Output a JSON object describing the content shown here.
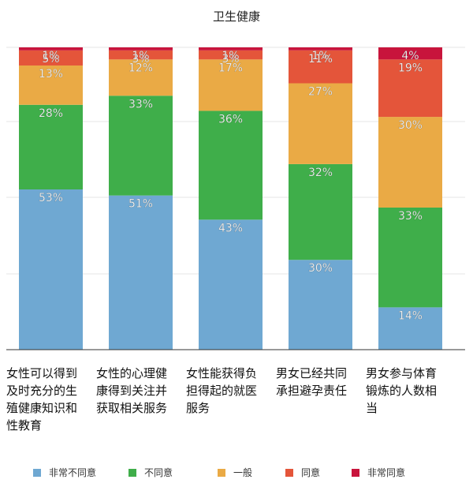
{
  "chart_data": {
    "type": "bar",
    "stacked": true,
    "title": "卫生健康",
    "categories": [
      "女性可以得到及时充分的生殖健康知识和性教育",
      "女性的心理健康得到关注并获取相关服务",
      "女性能获得负担得起的就医服务",
      "男女已经共同承担避孕责任",
      "男女参与体育锻炼的人数相当"
    ],
    "series": [
      {
        "name": "非常不同意",
        "color": "#6fa8d2",
        "values": [
          53,
          51,
          43,
          30,
          14
        ],
        "labels": [
          "53%",
          "51%",
          "43%",
          "30%",
          "14%"
        ]
      },
      {
        "name": "不同意",
        "color": "#3fae4a",
        "values": [
          28,
          33,
          36,
          32,
          33
        ],
        "labels": [
          "28%",
          "33%",
          "36%",
          "32%",
          "33%"
        ]
      },
      {
        "name": "一般",
        "color": "#eaaa45",
        "values": [
          13,
          12,
          17,
          27,
          30
        ],
        "labels": [
          "13%",
          "12%",
          "17%",
          "27%",
          "30%"
        ]
      },
      {
        "name": "同意",
        "color": "#e4553a",
        "values": [
          5,
          3,
          3,
          11,
          19
        ],
        "labels": [
          "5%",
          "3%",
          "3%",
          "11%",
          "19%"
        ]
      },
      {
        "name": "非常同意",
        "color": "#c8143c",
        "values": [
          1,
          1,
          1,
          1,
          4
        ],
        "labels": [
          "1%",
          "1%",
          "1%",
          "1%",
          "4%"
        ]
      }
    ],
    "ylim": [
      0,
      100
    ],
    "grid": true,
    "legend_position": "bottom"
  }
}
